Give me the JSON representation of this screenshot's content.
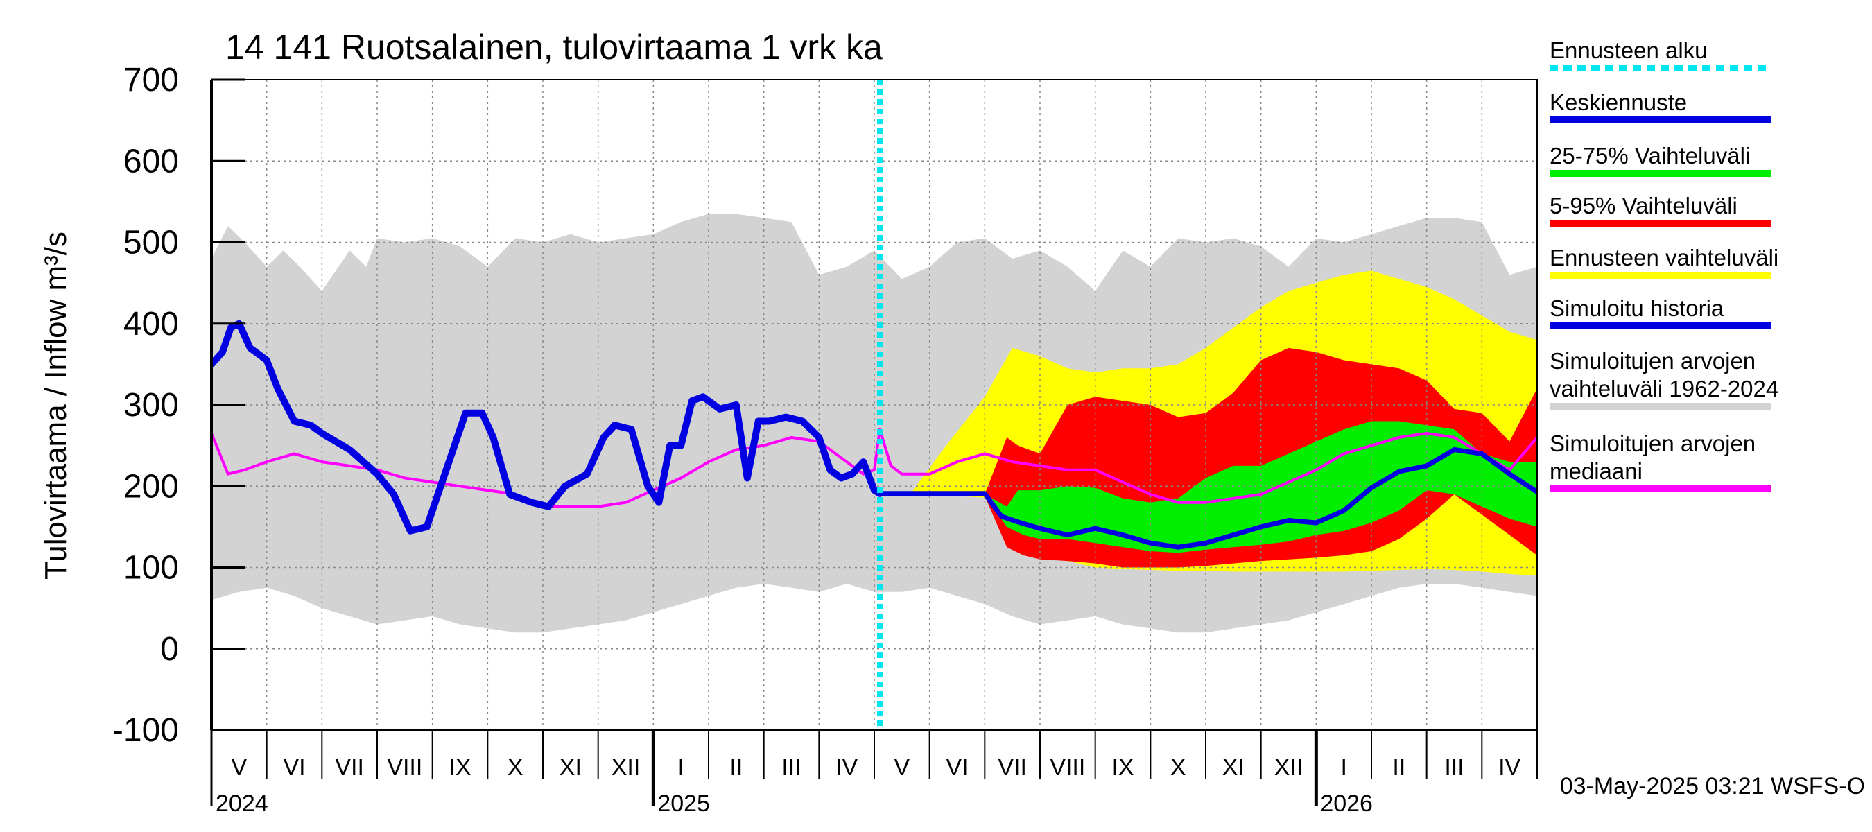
{
  "chart_data": {
    "type": "area",
    "title": "14 141 Ruotsalainen, tulovirtaama 1 vrk ka",
    "ylabel": "Tulovirtaama / Inflow    m³/s",
    "ylim": [
      -100,
      700
    ],
    "yticks": [
      -100,
      0,
      100,
      200,
      300,
      400,
      500,
      600,
      700
    ],
    "xrange_months": [
      0,
      24
    ],
    "month_labels": [
      "V",
      "VI",
      "VII",
      "VIII",
      "IX",
      "X",
      "XI",
      "XII",
      "I",
      "II",
      "III",
      "IV",
      "V",
      "VI",
      "VII",
      "VIII",
      "IX",
      "X",
      "XI",
      "XII",
      "I",
      "II",
      "III",
      "IV"
    ],
    "year_labels": [
      {
        "label": "2024",
        "month": 0
      },
      {
        "label": "2025",
        "month": 8
      },
      {
        "label": "2026",
        "month": 20
      }
    ],
    "forecast_start_month": 12.1,
    "legend": [
      {
        "label": "Ennusteen alku",
        "color": "#00e5ee",
        "style": "dotted"
      },
      {
        "label": "Keskiennuste",
        "color": "#0000e0",
        "style": "solid"
      },
      {
        "label": "25-75% Vaihteluväli",
        "color": "#00ee00",
        "style": "solid"
      },
      {
        "label": "5-95% Vaihteluväli",
        "color": "#ff0000",
        "style": "solid"
      },
      {
        "label": "Ennusteen vaihteluväli",
        "color": "#ffff00",
        "style": "solid"
      },
      {
        "label": "Simuloitu historia",
        "color": "#0000e0",
        "style": "solid"
      },
      {
        "label": "Simuloitujen arvojen\nvaihteluväli 1962-2024",
        "color": "#d3d3d3",
        "style": "solid"
      },
      {
        "label": "Simuloitujen arvojen\nmediaani",
        "color": "#ff00ff",
        "style": "solid"
      }
    ],
    "footer": "03-May-2025 03:21 WSFS-O",
    "colors": {
      "hist_range": "#d3d3d3",
      "ens_range": "#ffff00",
      "p5_95": "#ff0000",
      "p25_75": "#00ee00",
      "mean": "#0000e0",
      "median": "#ff00ff",
      "forecast_start": "#00e5ee",
      "grid": "#888888"
    },
    "series": [
      {
        "name": "hist_upper",
        "x": [
          0,
          0.3,
          0.6,
          1,
          1.3,
          1.6,
          2,
          2.5,
          2.8,
          3,
          3.5,
          4,
          4.5,
          5,
          5.5,
          6,
          6.5,
          7,
          7.5,
          8,
          8.5,
          9,
          9.5,
          10,
          10.5,
          11,
          11.5,
          12,
          12.5,
          13,
          13.5,
          14,
          14.5,
          15,
          15.5,
          16,
          16.5,
          17,
          17.5,
          18,
          18.5,
          19,
          19.5,
          20,
          20.5,
          21,
          21.5,
          22,
          22.5,
          23,
          23.5,
          24
        ],
        "y": [
          480,
          520,
          500,
          470,
          490,
          470,
          440,
          490,
          470,
          505,
          500,
          505,
          495,
          470,
          505,
          500,
          510,
          500,
          505,
          510,
          525,
          535,
          535,
          530,
          525,
          460,
          470,
          490,
          455,
          470,
          500,
          505,
          480,
          490,
          470,
          440,
          490,
          470,
          505,
          500,
          505,
          495,
          470,
          505,
          500,
          510,
          520,
          530,
          530,
          525,
          460,
          470
        ]
      },
      {
        "name": "hist_lower",
        "x": [
          0,
          0.5,
          1,
          1.5,
          2,
          2.5,
          3,
          3.5,
          4,
          4.5,
          5,
          5.5,
          6,
          6.5,
          7,
          7.5,
          8,
          8.5,
          9,
          9.5,
          10,
          10.5,
          11,
          11.5,
          12,
          12.5,
          13,
          13.5,
          14,
          14.5,
          15,
          15.5,
          16,
          16.5,
          17,
          17.5,
          18,
          18.5,
          19,
          19.5,
          20,
          20.5,
          21,
          21.5,
          22,
          22.5,
          23,
          23.5,
          24
        ],
        "y": [
          60,
          70,
          75,
          65,
          50,
          40,
          30,
          35,
          40,
          30,
          25,
          20,
          20,
          25,
          30,
          35,
          45,
          55,
          65,
          75,
          80,
          75,
          70,
          80,
          70,
          70,
          75,
          65,
          55,
          40,
          30,
          35,
          40,
          30,
          25,
          20,
          20,
          25,
          30,
          35,
          45,
          55,
          65,
          75,
          80,
          80,
          75,
          70,
          65
        ]
      },
      {
        "name": "ens_upper",
        "x": [
          12.7,
          13.3,
          14,
          14.5,
          15,
          15.5,
          16,
          16.5,
          17,
          17.5,
          18,
          18.5,
          19,
          19.5,
          20,
          20.5,
          21,
          21.5,
          22,
          22.5,
          23,
          23.5,
          24
        ],
        "y": [
          195,
          250,
          310,
          370,
          360,
          345,
          340,
          345,
          345,
          350,
          370,
          395,
          420,
          440,
          450,
          460,
          465,
          455,
          445,
          430,
          410,
          390,
          380
        ]
      },
      {
        "name": "ens_lower",
        "x": [
          12.7,
          13.5,
          14,
          14.5,
          15,
          15.5,
          16,
          16.5,
          17,
          17.5,
          18,
          18.5,
          19,
          19.5,
          20,
          20.5,
          21,
          21.5,
          22,
          22.5,
          23,
          23.5,
          24
        ],
        "y": [
          190,
          188,
          186,
          130,
          115,
          108,
          100,
          98,
          97,
          96,
          96,
          95,
          95,
          95,
          95,
          95,
          96,
          97,
          98,
          97,
          95,
          92,
          90
        ]
      },
      {
        "name": "p95",
        "x": [
          12.7,
          13.5,
          14,
          14.4,
          14.6,
          15,
          15.5,
          16,
          16.5,
          17,
          17.5,
          18,
          18.5,
          19,
          19.5,
          20,
          20.5,
          21,
          21.5,
          22,
          22.5,
          23,
          23.5,
          24
        ],
        "y": [
          190,
          190,
          190,
          260,
          250,
          240,
          300,
          310,
          305,
          300,
          285,
          290,
          315,
          355,
          370,
          365,
          355,
          350,
          345,
          330,
          295,
          290,
          255,
          320
        ]
      },
      {
        "name": "p5",
        "x": [
          12.7,
          14,
          14.4,
          14.7,
          15,
          15.5,
          16,
          16.5,
          17,
          17.5,
          18,
          18.5,
          19,
          19.5,
          20,
          20.5,
          21,
          21.5,
          22,
          22.5,
          23,
          23.5,
          24
        ],
        "y": [
          190,
          188,
          125,
          115,
          110,
          108,
          105,
          100,
          100,
          100,
          102,
          105,
          108,
          110,
          112,
          115,
          120,
          135,
          160,
          190,
          165,
          140,
          115
        ]
      },
      {
        "name": "p75",
        "x": [
          12.7,
          14,
          14.4,
          14.6,
          15,
          15.5,
          16,
          16.5,
          17,
          17.5,
          18,
          18.5,
          19,
          19.5,
          20,
          20.5,
          21,
          21.5,
          22,
          22.5,
          23,
          23.5,
          24
        ],
        "y": [
          190,
          190,
          175,
          195,
          195,
          200,
          198,
          185,
          180,
          185,
          210,
          225,
          225,
          240,
          255,
          270,
          280,
          280,
          275,
          270,
          240,
          230,
          230
        ]
      },
      {
        "name": "p25",
        "x": [
          12.7,
          14,
          14.4,
          14.7,
          15,
          15.5,
          16,
          16.5,
          17,
          17.5,
          18,
          18.5,
          19,
          19.5,
          20,
          20.5,
          21,
          21.5,
          22,
          22.5,
          23,
          23.5,
          24
        ],
        "y": [
          190,
          188,
          150,
          140,
          135,
          135,
          130,
          125,
          120,
          118,
          122,
          125,
          128,
          132,
          140,
          145,
          155,
          170,
          195,
          190,
          175,
          160,
          150
        ]
      },
      {
        "name": "mean",
        "x": [
          12.1,
          13,
          14,
          14.3,
          14.6,
          15,
          15.5,
          16,
          16.5,
          17,
          17.5,
          18,
          18.5,
          19,
          19.5,
          20,
          20.5,
          21,
          21.5,
          22,
          22.5,
          23,
          23.5,
          24
        ],
        "y": [
          191,
          191,
          191,
          163,
          156,
          148,
          140,
          148,
          140,
          130,
          125,
          130,
          140,
          150,
          158,
          155,
          170,
          198,
          218,
          225,
          245,
          240,
          215,
          193
        ]
      },
      {
        "name": "sim_history",
        "x": [
          0,
          0.2,
          0.35,
          0.5,
          0.7,
          1,
          1.2,
          1.5,
          1.8,
          2,
          2.5,
          3,
          3.3,
          3.6,
          3.9,
          4.2,
          4.6,
          4.9,
          5.1,
          5.4,
          5.8,
          6.1,
          6.4,
          6.8,
          7.1,
          7.3,
          7.6,
          7.9,
          8.1,
          8.3,
          8.5,
          8.7,
          8.9,
          9.2,
          9.5,
          9.7,
          9.9,
          10.1,
          10.4,
          10.7,
          11,
          11.2,
          11.4,
          11.6,
          11.8,
          12,
          12.1
        ],
        "y": [
          350,
          365,
          395,
          400,
          370,
          355,
          320,
          280,
          275,
          265,
          245,
          215,
          190,
          145,
          150,
          210,
          290,
          290,
          260,
          190,
          180,
          175,
          200,
          215,
          260,
          275,
          270,
          200,
          180,
          250,
          250,
          305,
          310,
          295,
          300,
          210,
          280,
          280,
          285,
          280,
          260,
          220,
          210,
          215,
          230,
          195,
          191
        ]
      },
      {
        "name": "median",
        "x": [
          0,
          0.3,
          0.6,
          1,
          1.5,
          2,
          2.5,
          3,
          3.5,
          4,
          4.5,
          5,
          5.5,
          6,
          6.5,
          7,
          7.5,
          8,
          8.5,
          9,
          9.5,
          10,
          10.5,
          11,
          11.5,
          11.8,
          12,
          12.1,
          12.3,
          12.5,
          13,
          13.5,
          14,
          14.5,
          15,
          15.5,
          16,
          16.5,
          17,
          17.5,
          18,
          18.5,
          19,
          19.5,
          20,
          20.5,
          21,
          21.5,
          22,
          22.5,
          23,
          23.5,
          24
        ],
        "y": [
          265,
          215,
          220,
          230,
          240,
          230,
          225,
          220,
          210,
          205,
          200,
          195,
          190,
          175,
          175,
          175,
          180,
          195,
          210,
          230,
          245,
          250,
          260,
          255,
          230,
          215,
          220,
          270,
          225,
          215,
          215,
          230,
          240,
          230,
          225,
          220,
          220,
          205,
          190,
          180,
          180,
          185,
          190,
          205,
          220,
          240,
          250,
          260,
          265,
          260,
          240,
          220,
          260
        ]
      }
    ]
  }
}
